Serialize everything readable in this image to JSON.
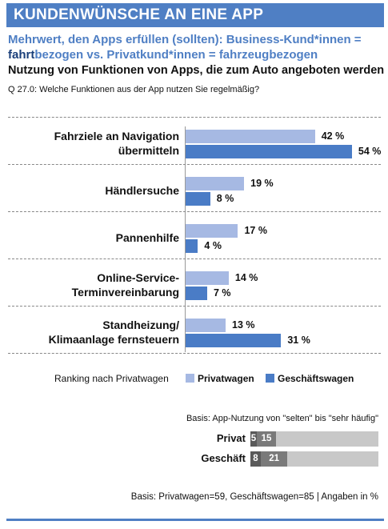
{
  "header": {
    "title": "KUNDENWÜNSCHE AN EINE APP"
  },
  "subtitle": {
    "line1": "Mehrwert, den Apps erfüllen (sollten): Business-Kund*innen =",
    "line2_bold": "fahrt",
    "line2_rest": "bezogen vs. Privatkund*innen = fahrzeugbezogen"
  },
  "chart_title": "Nutzung von Funktionen von Apps, die zum Auto angeboten werden",
  "question": "Q 27.0: Welche Funktionen aus der App nutzen Sie regelmäßig?",
  "chart_data": {
    "type": "bar",
    "orientation": "horizontal",
    "title": "Nutzung von Funktionen von Apps, die zum Auto angeboten werden",
    "categories": [
      [
        "Fahrziele an Navigation",
        "übermitteln"
      ],
      [
        "Händlersuche"
      ],
      [
        "Pannenhilfe"
      ],
      [
        "Online-Service-",
        "Terminvereinbarung"
      ],
      [
        "Standheizung/",
        "Klimaanlage fernsteuern"
      ]
    ],
    "series": [
      {
        "name": "Privatwagen",
        "values": [
          42,
          19,
          17,
          14,
          13
        ],
        "color": "#a6b9e3"
      },
      {
        "name": "Geschäftswagen",
        "values": [
          54,
          8,
          4,
          7,
          31
        ],
        "color": "#4a7cc6"
      }
    ],
    "value_suffix": " %",
    "legend_placement": "bottom-right",
    "ranking_note": "Ranking nach Privatwagen",
    "grid": false
  },
  "usage": {
    "basis": "Basis: App-Nutzung von \"selten\" bis \"sehr häufig\"",
    "rows": [
      {
        "label": "Privat",
        "selten": 5,
        "sehr": 15,
        "rest_percent": 80
      },
      {
        "label": "Geschäft",
        "selten": 8,
        "sehr": 21,
        "rest_percent": 71
      }
    ]
  },
  "footer": "Basis: Privatwagen=59, Geschäftswagen=85  | Angaben in %"
}
